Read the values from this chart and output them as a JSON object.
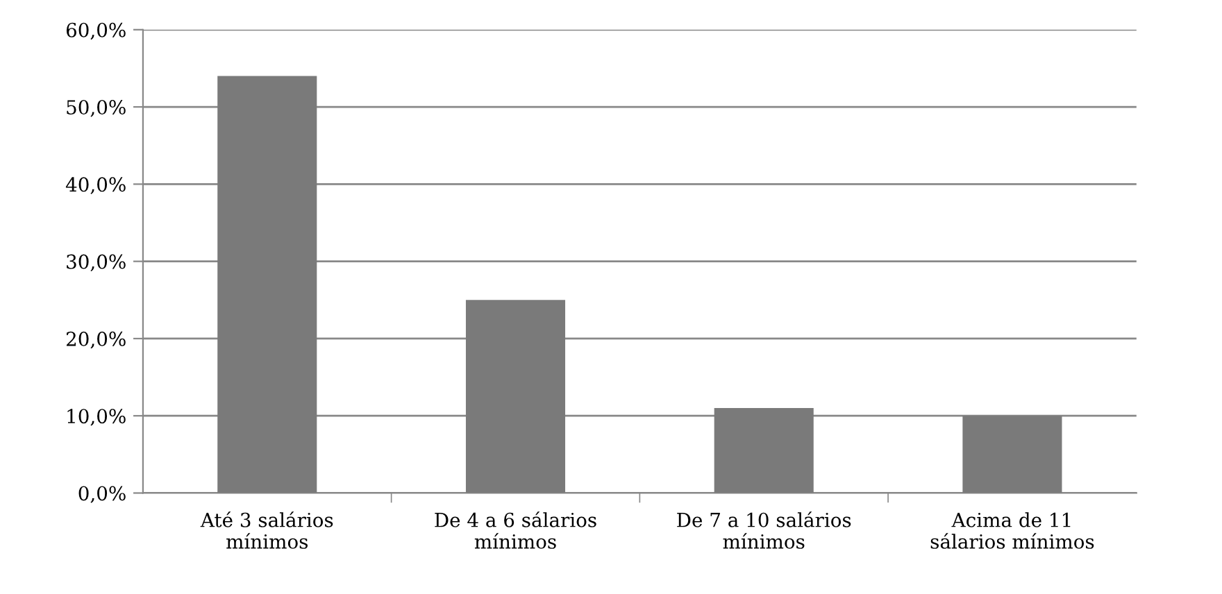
{
  "chart_data": {
    "type": "bar",
    "categories": [
      "Até 3 salários\nmínimos",
      "De 4 a 6 sálarios\nmínimos",
      "De 7 a 10 salários\nmínimos",
      "Acima de 11\nsálarios mínimos"
    ],
    "values": [
      54,
      25,
      11,
      10
    ],
    "color": "#7a7a7a",
    "ylim": [
      0,
      60
    ],
    "yticks": [
      {
        "value": 0,
        "label": "0,0%"
      },
      {
        "value": 10,
        "label": "10,0%"
      },
      {
        "value": 20,
        "label": "20,0%"
      },
      {
        "value": 30,
        "label": "30,0%"
      },
      {
        "value": 40,
        "label": "40,0%"
      },
      {
        "value": 50,
        "label": "50,0%"
      },
      {
        "value": 60,
        "label": "60,0%"
      }
    ],
    "grid": "y",
    "legend": false
  }
}
